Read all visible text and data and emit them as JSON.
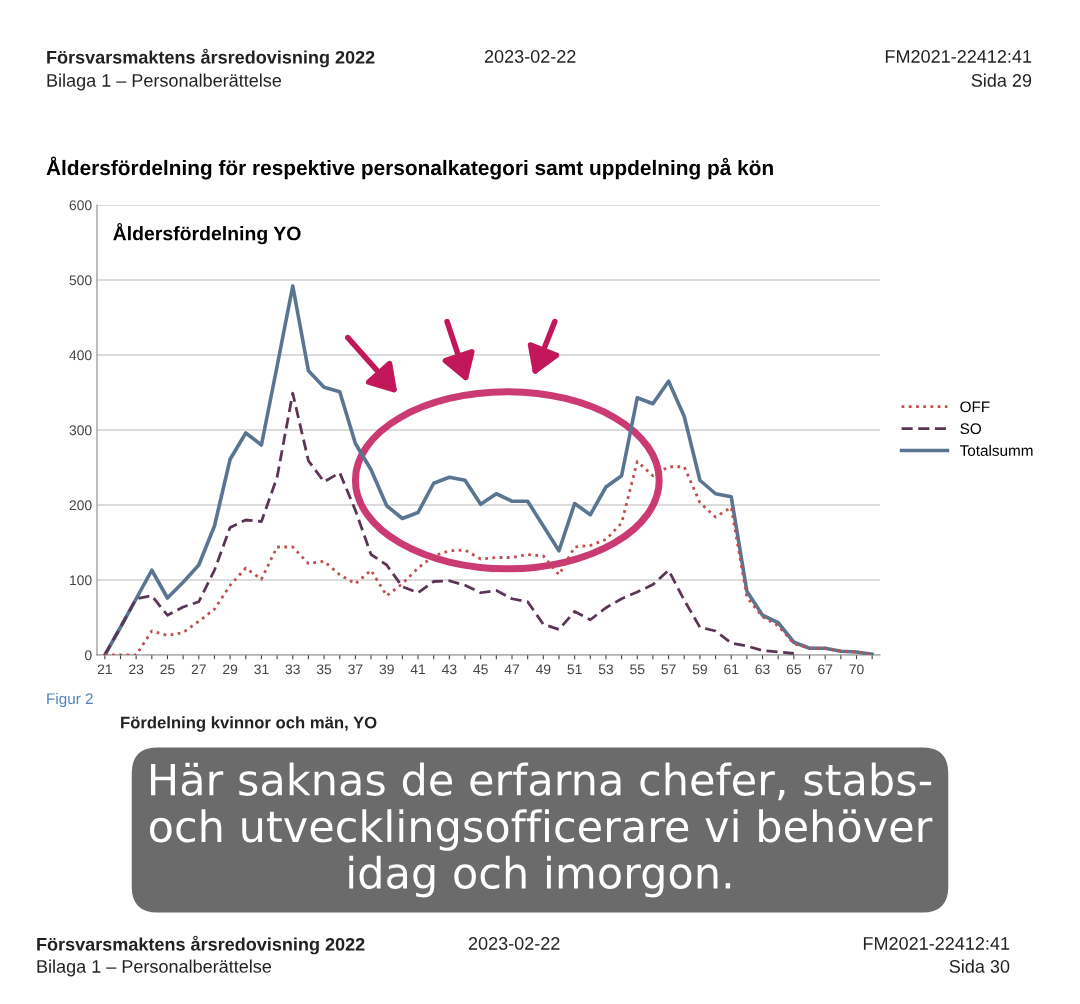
{
  "chart_data": {
    "type": "line",
    "title": "Åldersfördelning för respektive personalkategori samt uppdelning på kön",
    "subtitle": "Åldersfördelning YO",
    "categories": [
      "21",
      null,
      "23",
      null,
      "25",
      null,
      "27",
      null,
      "29",
      null,
      "31",
      null,
      "33",
      null,
      "35",
      null,
      "37",
      null,
      "39",
      null,
      "41",
      null,
      "43",
      null,
      "45",
      null,
      "47",
      null,
      "49",
      null,
      "51",
      null,
      "53",
      null,
      "55",
      null,
      "57",
      null,
      "59",
      null,
      "61",
      null,
      "63",
      null,
      "65",
      null,
      "67",
      null,
      "70",
      null
    ],
    "series": [
      {
        "name": "OFF",
        "color": "#c0504d",
        "line_style": "dotted",
        "values": [
          0,
          0,
          0,
          32,
          26,
          30,
          45,
          61,
          93,
          116,
          101,
          144,
          144,
          122,
          125,
          107,
          95,
          113,
          79,
          95,
          116,
          132,
          139,
          140,
          128,
          130,
          130,
          134,
          132,
          107,
          144,
          146,
          154,
          176,
          258,
          239,
          251,
          251,
          203,
          184,
          197,
          77,
          51,
          39,
          15,
          9,
          9,
          5,
          4,
          1
        ]
      },
      {
        "name": "SO",
        "color": "#5a3556",
        "line_style": "dashed",
        "values": [
          0,
          37,
          75,
          79,
          53,
          64,
          71,
          113,
          170,
          180,
          178,
          237,
          349,
          259,
          231,
          243,
          193,
          134,
          120,
          91,
          83,
          98,
          99,
          93,
          83,
          86,
          75,
          71,
          41,
          34,
          58,
          47,
          63,
          75,
          84,
          94,
          113,
          73,
          37,
          32,
          16,
          12,
          6,
          4,
          2,
          null,
          null,
          null,
          null,
          null
        ]
      },
      {
        "name": "Totalsumm",
        "color": "#5a7592",
        "line_style": "solid",
        "values": [
          0,
          37,
          75,
          113,
          76,
          97,
          120,
          172,
          261,
          296,
          280,
          385,
          492,
          379,
          357,
          351,
          282,
          247,
          199,
          182,
          190,
          229,
          237,
          233,
          201,
          215,
          205,
          205,
          172,
          139,
          202,
          187,
          224,
          239,
          343,
          335,
          365,
          318,
          233,
          215,
          211,
          85,
          53,
          43,
          17,
          9,
          9,
          5,
          4,
          1
        ]
      }
    ],
    "ylim": [
      0,
      600
    ],
    "yticks": [
      0,
      100,
      200,
      300,
      400,
      500,
      600
    ],
    "grid": "y",
    "legend": "right",
    "marker": "none",
    "annotations": [
      "Försvarsmaktens årsredovisning 2022",
      "2023-02-22",
      "FM2021-22412:41",
      "Bilaga 1 – Personalberättelse",
      "Sida 29",
      "Figur 2",
      "Fördelning kvinnor och män, YO",
      "Här saknas de erfarna chefer, stabs-\noch utvecklingsofficerare vi behöver\nidag och imorgon.",
      "Försvarsmaktens årsredovisning 2022",
      "2023-02-22",
      "FM2021-22412:41",
      "Bilaga 1 – Personalberättelse",
      "Sida 30"
    ]
  }
}
